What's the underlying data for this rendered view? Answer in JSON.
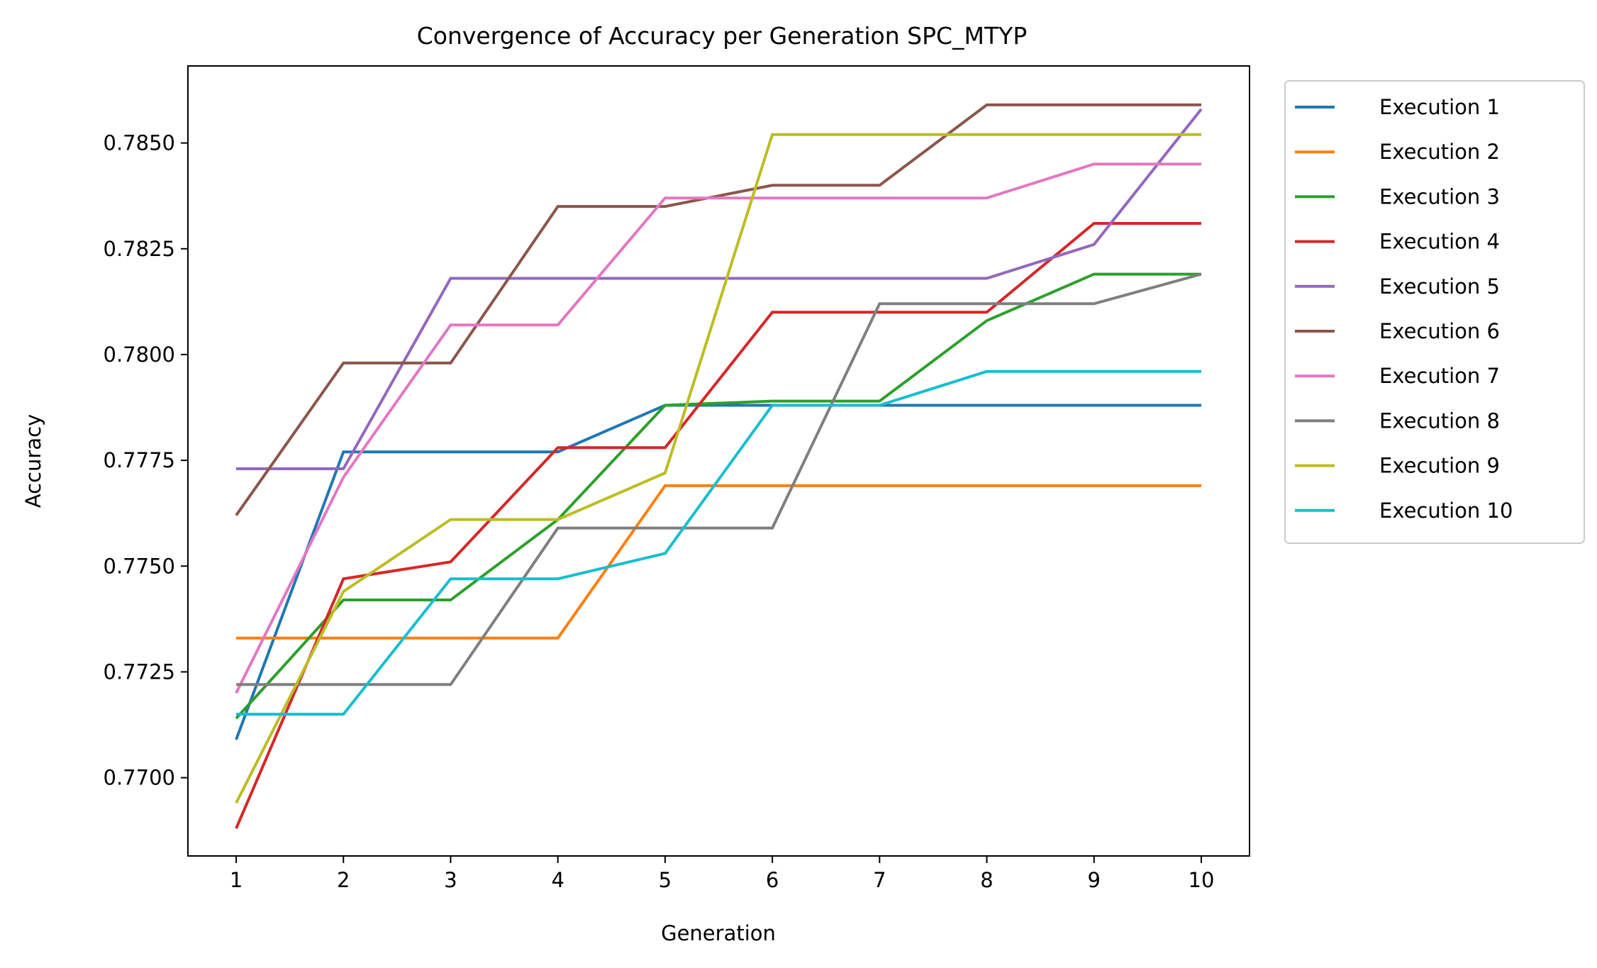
{
  "chart_data": {
    "type": "line",
    "title": "Convergence of Accuracy per Generation SPC_MTYP",
    "xlabel": "Generation",
    "ylabel": "Accuracy",
    "x": [
      1,
      2,
      3,
      4,
      5,
      6,
      7,
      8,
      9,
      10
    ],
    "x_ticks": [
      "1",
      "2",
      "3",
      "4",
      "5",
      "6",
      "7",
      "8",
      "9",
      "10"
    ],
    "y_ticks": [
      "0.7700",
      "0.7725",
      "0.7750",
      "0.7775",
      "0.7800",
      "0.7825",
      "0.7850"
    ],
    "xlim": [
      0.55,
      10.45
    ],
    "ylim": [
      0.76815,
      0.78682
    ],
    "grid": false,
    "legend_position": "outside right, top",
    "series": [
      {
        "name": "Execution 1",
        "color": "#1f77b4",
        "values": [
          0.7709,
          0.7777,
          0.7777,
          0.7777,
          0.7788,
          0.7788,
          0.7788,
          0.7788,
          0.7788,
          0.7788
        ]
      },
      {
        "name": "Execution 2",
        "color": "#ff7f0e",
        "values": [
          0.7733,
          0.7733,
          0.7733,
          0.7733,
          0.7769,
          0.7769,
          0.7769,
          0.7769,
          0.7769,
          0.7769
        ]
      },
      {
        "name": "Execution 3",
        "color": "#2ca02c",
        "values": [
          0.7714,
          0.7742,
          0.7742,
          0.7761,
          0.7788,
          0.7789,
          0.7789,
          0.7808,
          0.7819,
          0.7819
        ]
      },
      {
        "name": "Execution 4",
        "color": "#d62728",
        "values": [
          0.7688,
          0.7747,
          0.7751,
          0.7778,
          0.7778,
          0.781,
          0.781,
          0.781,
          0.7831,
          0.7831
        ]
      },
      {
        "name": "Execution 5",
        "color": "#9467bd",
        "values": [
          0.7773,
          0.7773,
          0.7818,
          0.7818,
          0.7818,
          0.7818,
          0.7818,
          0.7818,
          0.7826,
          0.7858
        ]
      },
      {
        "name": "Execution 6",
        "color": "#8c564b",
        "values": [
          0.7762,
          0.7798,
          0.7798,
          0.7835,
          0.7835,
          0.784,
          0.784,
          0.7859,
          0.7859,
          0.7859
        ]
      },
      {
        "name": "Execution 7",
        "color": "#e377c2",
        "values": [
          0.772,
          0.7771,
          0.7807,
          0.7807,
          0.7837,
          0.7837,
          0.7837,
          0.7837,
          0.7845,
          0.7845
        ]
      },
      {
        "name": "Execution 8",
        "color": "#7f7f7f",
        "values": [
          0.7722,
          0.7722,
          0.7722,
          0.7759,
          0.7759,
          0.7759,
          0.7812,
          0.7812,
          0.7812,
          0.7819
        ]
      },
      {
        "name": "Execution 9",
        "color": "#bcbd22",
        "values": [
          0.7694,
          0.7744,
          0.7761,
          0.7761,
          0.7772,
          0.7852,
          0.7852,
          0.7852,
          0.7852,
          0.7852
        ]
      },
      {
        "name": "Execution 10",
        "color": "#17becf",
        "values": [
          0.7715,
          0.7715,
          0.7747,
          0.7747,
          0.7753,
          0.7788,
          0.7788,
          0.7796,
          0.7796,
          0.7796
        ]
      }
    ]
  }
}
